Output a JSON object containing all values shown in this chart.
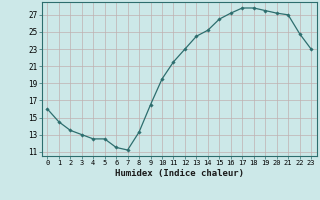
{
  "x": [
    0,
    1,
    2,
    3,
    4,
    5,
    6,
    7,
    8,
    9,
    10,
    11,
    12,
    13,
    14,
    15,
    16,
    17,
    18,
    19,
    20,
    21,
    22,
    23
  ],
  "y": [
    16,
    14.5,
    13.5,
    13,
    12.5,
    12.5,
    11.5,
    11.2,
    13.3,
    16.5,
    19.5,
    21.5,
    23,
    24.5,
    25.2,
    26.5,
    27.2,
    27.8,
    27.8,
    27.5,
    27.2,
    27,
    24.8,
    23
  ],
  "line_color": "#2d6e6e",
  "marker": "D",
  "marker_size": 1.8,
  "bg_color": "#cce8e8",
  "grid_color": "#c0b0b0",
  "xlabel": "Humidex (Indice chaleur)",
  "yticks": [
    11,
    13,
    15,
    17,
    19,
    21,
    23,
    25,
    27
  ],
  "xticks": [
    0,
    1,
    2,
    3,
    4,
    5,
    6,
    7,
    8,
    9,
    10,
    11,
    12,
    13,
    14,
    15,
    16,
    17,
    18,
    19,
    20,
    21,
    22,
    23
  ],
  "ylim": [
    10.5,
    28.5
  ],
  "xlim": [
    -0.5,
    23.5
  ]
}
